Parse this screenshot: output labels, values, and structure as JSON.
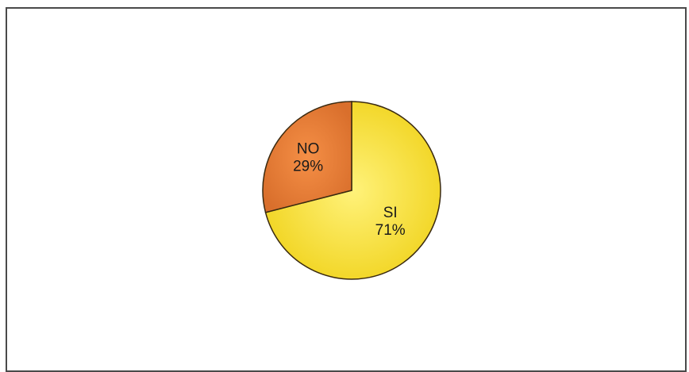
{
  "chart_data": {
    "type": "pie",
    "title": "",
    "slices": [
      {
        "category": "SI",
        "value": 71,
        "label": "71%",
        "color": "#f2dc2a"
      },
      {
        "category": "NO",
        "value": 29,
        "label": "29%",
        "color": "#e87f3a"
      }
    ],
    "start_angle_deg": 0,
    "direction": "clockwise",
    "legend": "none"
  }
}
